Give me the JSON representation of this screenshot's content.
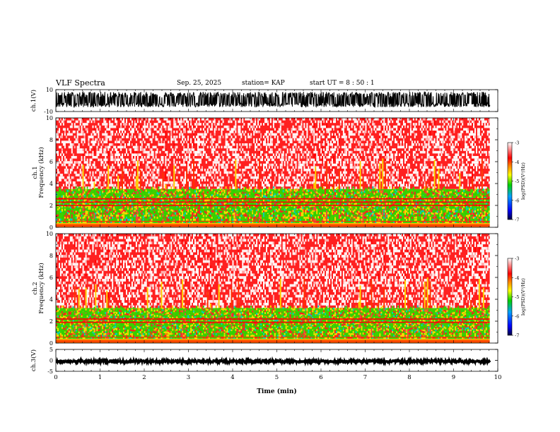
{
  "header": {
    "title": "VLF Spectra",
    "date": "Sep. 25, 2025",
    "station_label": "station= KAP",
    "start_label": "start  UT  =   8  : 50 : 1"
  },
  "chart_data": [
    {
      "type": "line",
      "name": "ch1-waveform",
      "ylabel": "ch.1(V)",
      "ylim": [
        -10,
        10
      ],
      "yticks": [
        "10",
        "-10"
      ],
      "xlim": [
        0,
        10
      ],
      "data_range_min": [
        0,
        9.82
      ],
      "description_values": {
        "amplitude_typical": [
          -6,
          8
        ]
      }
    },
    {
      "type": "heatmap",
      "name": "ch1-spectrogram",
      "ylabel": "ch.1\nFrequency  (kHz)",
      "ylim": [
        0,
        10
      ],
      "yticks": [
        "0",
        "2",
        "4",
        "6",
        "8",
        "10"
      ],
      "bands": [
        {
          "from_khz": 0.0,
          "to_khz": 0.4,
          "log_psd": -4.2
        },
        {
          "from_khz": 0.4,
          "to_khz": 3.5,
          "log_psd": -5.0
        },
        {
          "from_khz": 3.5,
          "to_khz": 10.0,
          "log_psd": -3.6
        }
      ],
      "lines_khz": [
        2.0,
        2.3,
        2.6
      ],
      "colorbar": {
        "label": "log(PSD)(V²/Hz)",
        "range": [
          -7,
          -3
        ],
        "ticks": [
          "-3",
          "-4",
          "-5",
          "-6",
          "-7"
        ]
      }
    },
    {
      "type": "heatmap",
      "name": "ch2-spectrogram",
      "ylabel": "ch.2\nFrequency  (kHz)",
      "ylim": [
        0,
        10
      ],
      "yticks": [
        "0",
        "2",
        "4",
        "6",
        "8",
        "10"
      ],
      "bands": [
        {
          "from_khz": 0.0,
          "to_khz": 0.4,
          "log_psd": -4.2
        },
        {
          "from_khz": 0.4,
          "to_khz": 3.2,
          "log_psd": -5.2
        },
        {
          "from_khz": 3.2,
          "to_khz": 10.0,
          "log_psd": -3.6
        }
      ],
      "lines_khz": [
        1.9,
        2.2
      ],
      "colorbar": {
        "label": "log(PSD)(V²/Hz)",
        "range": [
          -7,
          -3
        ],
        "ticks": [
          "-3",
          "-4",
          "-5",
          "-6",
          "-7"
        ]
      }
    },
    {
      "type": "line",
      "name": "ch3-waveform",
      "ylabel": "ch.3(V)",
      "ylim": [
        -5,
        5
      ],
      "yticks": [
        "5",
        "0",
        "-5"
      ],
      "xlim": [
        0,
        10
      ],
      "data_range_min": [
        0,
        9.82
      ],
      "description_values": {
        "amplitude_typical": [
          -1.2,
          0.3
        ]
      }
    }
  ],
  "xaxis": {
    "label": "Time  (min)",
    "range": [
      0,
      10
    ],
    "ticks": [
      "0",
      "1",
      "2",
      "3",
      "4",
      "5",
      "6",
      "7",
      "8",
      "9",
      "10"
    ]
  },
  "colors": {
    "low": "#000080",
    "mid_low": "#0000ff",
    "mid": "#00c000",
    "mid_high": "#ffff00",
    "high": "#ff0000",
    "top": "#ffffff"
  }
}
